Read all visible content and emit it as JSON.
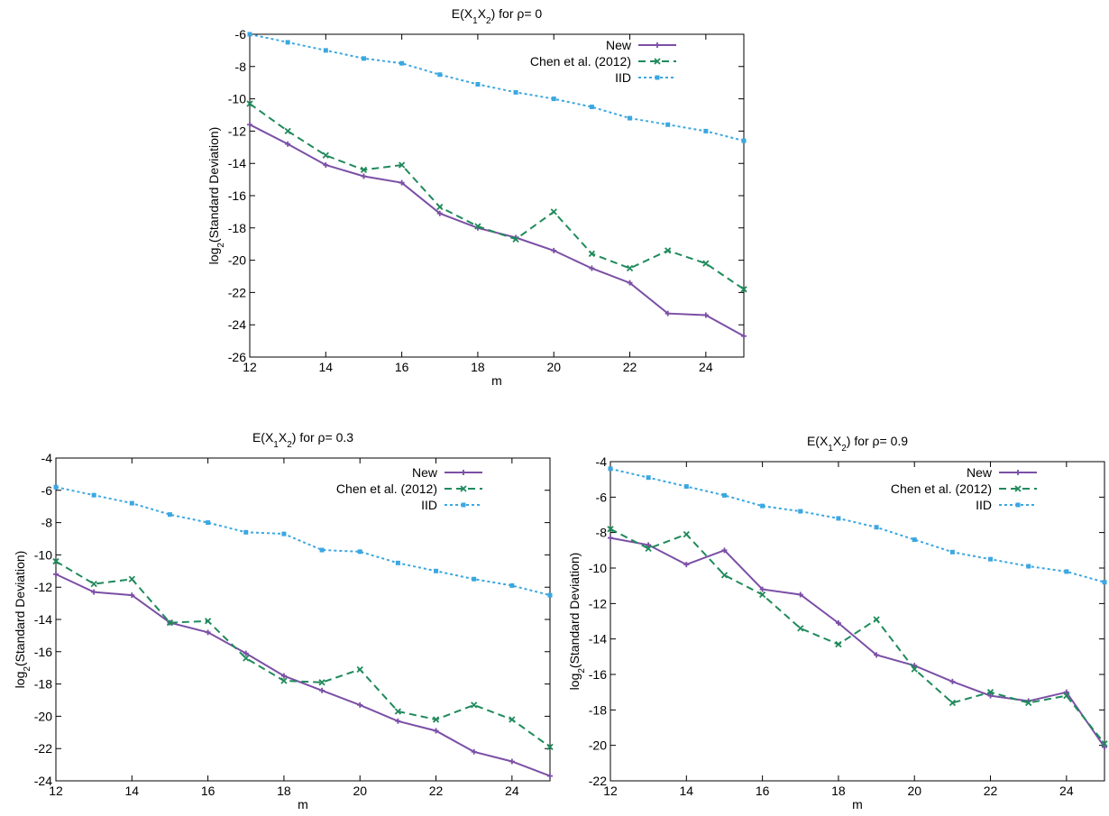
{
  "chart_data": [
    {
      "type": "line",
      "title": {
        "pre": "E(X",
        "s1": "1",
        "mid": "X",
        "s2": "2",
        "post": ") for ρ= 0"
      },
      "xlabel": "m",
      "ylabel": {
        "pre": "log",
        "sub": "2",
        "post": "(Standard Deviation)"
      },
      "xlim": [
        12,
        25
      ],
      "ylim": [
        -26,
        -6
      ],
      "xticks": [
        12,
        14,
        16,
        18,
        20,
        22,
        24
      ],
      "yticks": [
        -26,
        -24,
        -22,
        -20,
        -18,
        -16,
        -14,
        -12,
        -10,
        -8,
        -6
      ],
      "grid": false,
      "legend_position": "top-right",
      "x": [
        12,
        13,
        14,
        15,
        16,
        17,
        18,
        19,
        20,
        21,
        22,
        23,
        24,
        25
      ],
      "series": [
        {
          "name": "New",
          "color": "#7b4fa6",
          "style": "solid",
          "marker": "plus",
          "values": [
            -11.6,
            -12.8,
            -14.1,
            -14.8,
            -15.2,
            -17.1,
            -18.0,
            -18.6,
            -19.4,
            -20.5,
            -21.4,
            -23.3,
            -23.4,
            -24.7
          ]
        },
        {
          "name": "Chen et al. (2012)",
          "color": "#1f8a5b",
          "style": "dashed",
          "marker": "x",
          "values": [
            -10.3,
            -12.0,
            -13.5,
            -14.4,
            -14.1,
            -16.7,
            -17.9,
            -18.7,
            -17.0,
            -19.6,
            -20.5,
            -19.4,
            -20.2,
            -21.8
          ]
        },
        {
          "name": "IID",
          "color": "#3ba7e0",
          "style": "dotted",
          "marker": "square",
          "values": [
            -6.0,
            -6.5,
            -7.0,
            -7.5,
            -7.8,
            -8.5,
            -9.1,
            -9.6,
            -10.0,
            -10.5,
            -11.2,
            -11.6,
            -12.0,
            -12.6
          ]
        }
      ]
    },
    {
      "type": "line",
      "title": {
        "pre": "E(X",
        "s1": "1",
        "mid": "X",
        "s2": "2",
        "post": ") for ρ= 0.3"
      },
      "xlabel": "m",
      "ylabel": {
        "pre": "log",
        "sub": "2",
        "post": "(Standard Deviation)"
      },
      "xlim": [
        12,
        25
      ],
      "ylim": [
        -24,
        -4
      ],
      "xticks": [
        12,
        14,
        16,
        18,
        20,
        22,
        24
      ],
      "yticks": [
        -24,
        -22,
        -20,
        -18,
        -16,
        -14,
        -12,
        -10,
        -8,
        -6,
        -4
      ],
      "grid": false,
      "legend_position": "top-right",
      "x": [
        12,
        13,
        14,
        15,
        16,
        17,
        18,
        19,
        20,
        21,
        22,
        23,
        24,
        25
      ],
      "series": [
        {
          "name": "New",
          "color": "#7b4fa6",
          "style": "solid",
          "marker": "plus",
          "values": [
            -11.2,
            -12.3,
            -12.5,
            -14.2,
            -14.8,
            -16.1,
            -17.5,
            -18.4,
            -19.3,
            -20.3,
            -20.9,
            -22.2,
            -22.8,
            -23.7
          ]
        },
        {
          "name": "Chen et al. (2012)",
          "color": "#1f8a5b",
          "style": "dashed",
          "marker": "x",
          "values": [
            -10.4,
            -11.8,
            -11.5,
            -14.2,
            -14.1,
            -16.4,
            -17.8,
            -17.9,
            -17.1,
            -19.7,
            -20.2,
            -19.3,
            -20.2,
            -21.9
          ]
        },
        {
          "name": "IID",
          "color": "#3ba7e0",
          "style": "dotted",
          "marker": "square",
          "values": [
            -5.8,
            -6.3,
            -6.8,
            -7.5,
            -8.0,
            -8.6,
            -8.7,
            -9.7,
            -9.8,
            -10.5,
            -11.0,
            -11.5,
            -11.9,
            -12.5
          ]
        }
      ]
    },
    {
      "type": "line",
      "title": {
        "pre": "E(X",
        "s1": "1",
        "mid": "X",
        "s2": "2",
        "post": ") for ρ= 0.9"
      },
      "xlabel": "m",
      "ylabel": {
        "pre": "log",
        "sub": "2",
        "post": "(Standard Deviation)"
      },
      "xlim": [
        12,
        25
      ],
      "ylim": [
        -22,
        -4
      ],
      "xticks": [
        12,
        14,
        16,
        18,
        20,
        22,
        24
      ],
      "yticks": [
        -22,
        -20,
        -18,
        -16,
        -14,
        -12,
        -10,
        -8,
        -6,
        -4
      ],
      "grid": false,
      "legend_position": "top-right",
      "x": [
        12,
        13,
        14,
        15,
        16,
        17,
        18,
        19,
        20,
        21,
        22,
        23,
        24,
        25
      ],
      "series": [
        {
          "name": "New",
          "color": "#7b4fa6",
          "style": "solid",
          "marker": "plus",
          "values": [
            -8.3,
            -8.7,
            -9.8,
            -9.0,
            -11.2,
            -11.5,
            -13.1,
            -14.9,
            -15.5,
            -16.4,
            -17.2,
            -17.5,
            -17.0,
            -20.1
          ]
        },
        {
          "name": "Chen et al. (2012)",
          "color": "#1f8a5b",
          "style": "dashed",
          "marker": "x",
          "values": [
            -7.8,
            -8.9,
            -8.1,
            -10.4,
            -11.5,
            -13.4,
            -14.3,
            -12.9,
            -15.7,
            -17.6,
            -17.0,
            -17.6,
            -17.2,
            -19.9
          ]
        },
        {
          "name": "IID",
          "color": "#3ba7e0",
          "style": "dotted",
          "marker": "square",
          "values": [
            -4.4,
            -4.9,
            -5.4,
            -5.9,
            -6.5,
            -6.8,
            -7.2,
            -7.7,
            -8.4,
            -9.1,
            -9.5,
            -9.9,
            -10.2,
            -10.8
          ]
        }
      ]
    }
  ]
}
